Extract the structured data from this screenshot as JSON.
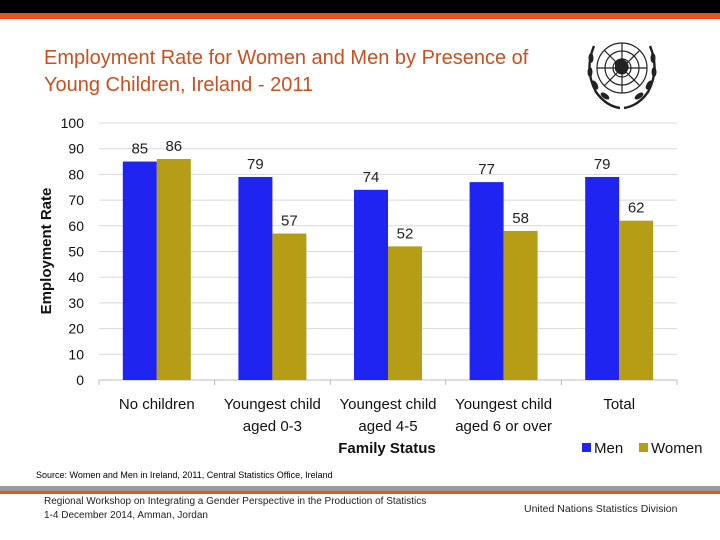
{
  "slide": {
    "title_line1": "Employment Rate for Women and Men by Presence of",
    "title_line2": "Young Children, Ireland - 2011",
    "source": "Source: Women and Men in Ireland, 2011, Central Statistics Office, Ireland",
    "footer_left_line1": "Regional Workshop on Integrating a Gender Perspective in the Production of Statistics",
    "footer_left_line2": "1-4 December 2014, Amman, Jordan",
    "footer_right": "United Nations Statistics Division"
  },
  "colors": {
    "men": "#1f24f0",
    "women": "#b59d16",
    "accent": "#e8541e",
    "title": "#c8501e"
  },
  "chart_data": {
    "type": "bar",
    "title": "",
    "ylabel": "Employment Rate",
    "xlabel": "Family Status",
    "ylim": [
      0,
      100
    ],
    "yticks": [
      0,
      10,
      20,
      30,
      40,
      50,
      60,
      70,
      80,
      90,
      100
    ],
    "grid": true,
    "legend_position": "bottom-right",
    "categories": [
      [
        "No children"
      ],
      [
        "Youngest child",
        "aged 0-3"
      ],
      [
        "Youngest child",
        "aged 4-5"
      ],
      [
        "Youngest child",
        "aged 6 or over"
      ],
      [
        "Total"
      ]
    ],
    "series": [
      {
        "name": "Men",
        "values": [
          85,
          79,
          74,
          77,
          79
        ]
      },
      {
        "name": "Women",
        "values": [
          86,
          57,
          52,
          58,
          62
        ]
      }
    ]
  }
}
